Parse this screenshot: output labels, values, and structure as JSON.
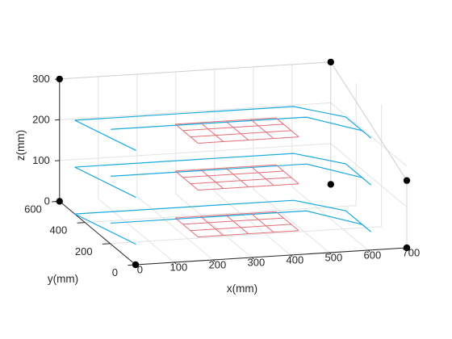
{
  "chart_data": {
    "type": "3d-line",
    "title": "",
    "xlabel": "x(mm)",
    "ylabel": "y(mm)",
    "zlabel": "z(mm)",
    "xlim": [
      0,
      700
    ],
    "ylim": [
      0,
      600
    ],
    "zlim": [
      0,
      300
    ],
    "x_ticks": [
      "0",
      "100",
      "200",
      "300",
      "400",
      "500",
      "600",
      "700"
    ],
    "y_ticks": [
      "0",
      "200",
      "400",
      "600"
    ],
    "z_ticks": [
      "0",
      "100",
      "200",
      "300"
    ],
    "grid": true,
    "view": "perspective 3D box, x toward lower-right, y toward lower-left",
    "box_corner_markers": [
      [
        0,
        0,
        0
      ],
      [
        700,
        0,
        0
      ],
      [
        0,
        600,
        0
      ],
      [
        700,
        600,
        0
      ],
      [
        0,
        600,
        300
      ],
      [
        700,
        600,
        300
      ],
      [
        700,
        0,
        165
      ]
    ],
    "layers": [
      0,
      115,
      230
    ],
    "series": [
      {
        "color": "#19a9de",
        "description_path_xy": [
          [
            0,
            480
          ],
          [
            565,
            480
          ],
          [
            660,
            360
          ],
          [
            660,
            160
          ]
        ],
        "inner_segment_xy": [
          [
            60,
            380
          ],
          [
            565,
            380
          ],
          [
            660,
            230
          ],
          [
            660,
            210
          ]
        ],
        "left_diagonal_xy": [
          [
            0,
            480
          ],
          [
            60,
            180
          ]
        ]
      },
      {
        "color": "#e36d78",
        "grid_x": [
          230,
          295,
          360,
          425,
          490
        ],
        "grid_y": [
          210,
          270,
          330,
          390
        ]
      }
    ]
  }
}
